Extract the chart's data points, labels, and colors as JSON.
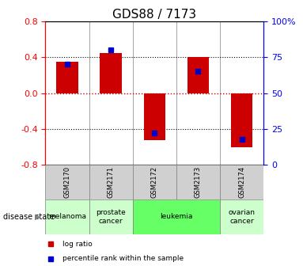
{
  "title": "GDS88 / 7173",
  "samples": [
    "GSM2170",
    "GSM2171",
    "GSM2172",
    "GSM2173",
    "GSM2174"
  ],
  "log_ratios": [
    0.35,
    0.45,
    -0.52,
    0.4,
    -0.6
  ],
  "percentile_ranks": [
    0.7,
    0.8,
    0.22,
    0.65,
    0.18
  ],
  "disease_states": [
    "melanoma",
    "prostate cancer",
    "leukemia",
    "leukemia",
    "ovarian cancer"
  ],
  "disease_colors": {
    "melanoma": "#ccffcc",
    "prostate cancer": "#ccffcc",
    "leukemia": "#66ff66",
    "ovarian cancer": "#ccffcc"
  },
  "bar_color": "#cc0000",
  "percentile_color": "#0000cc",
  "ylim": [
    -0.8,
    0.8
  ],
  "yticks": [
    -0.8,
    -0.4,
    0.0,
    0.4,
    0.8
  ],
  "right_ytick_labels": [
    "0",
    "25",
    "50",
    "75",
    "100%"
  ],
  "title_fontsize": 11,
  "tick_fontsize": 8,
  "bar_width": 0.5,
  "sample_label_color": "#d0d0d0",
  "zero_line_color": "#cc0000",
  "dotted_line_color": "#000000"
}
